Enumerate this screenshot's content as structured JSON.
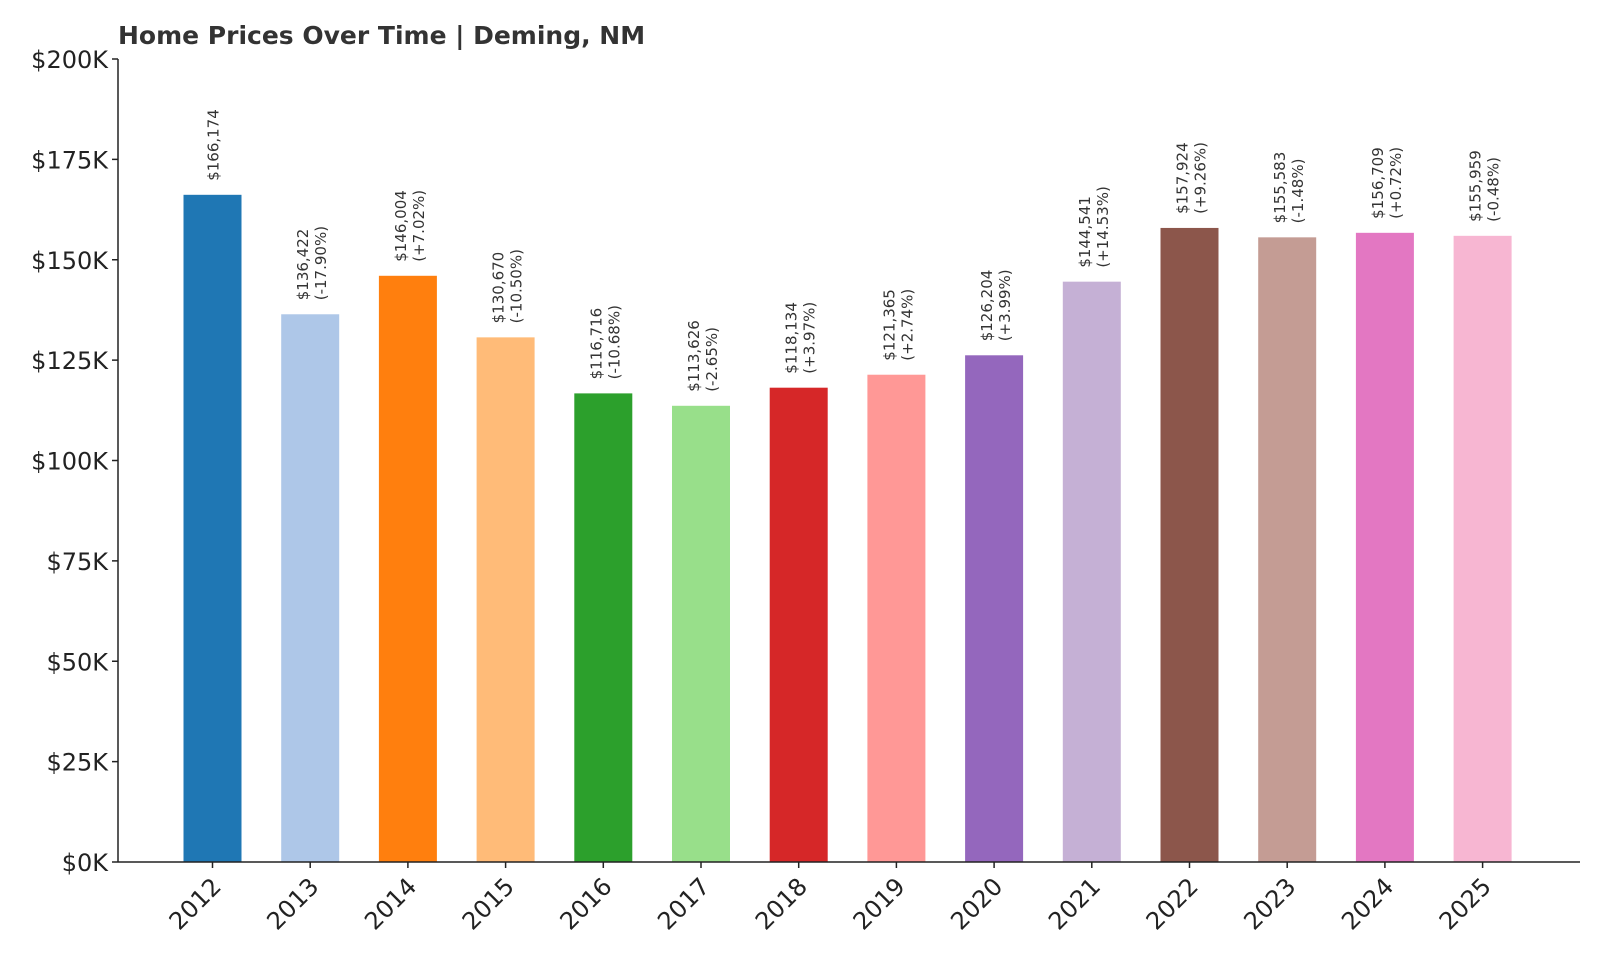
{
  "chart_data": {
    "type": "bar",
    "title": "Home Prices Over Time | Deming, NM",
    "xlabel": "",
    "ylabel": "",
    "ylim": [
      0,
      200000
    ],
    "yticks": [
      0,
      25000,
      50000,
      75000,
      100000,
      125000,
      150000,
      175000,
      200000
    ],
    "ytick_labels": [
      "$0K",
      "$25K",
      "$50K",
      "$75K",
      "$100K",
      "$125K",
      "$150K",
      "$175K",
      "$200K"
    ],
    "categories": [
      "2012",
      "2013",
      "2014",
      "2015",
      "2016",
      "2017",
      "2018",
      "2019",
      "2020",
      "2021",
      "2022",
      "2023",
      "2024",
      "2025"
    ],
    "values": [
      166174,
      136422,
      146004,
      130670,
      116716,
      113626,
      118134,
      121365,
      126204,
      144541,
      157924,
      155583,
      156709,
      155959
    ],
    "value_labels": [
      "$166,174",
      "$136,422",
      "$146,004",
      "$130,670",
      "$116,716",
      "$113,626",
      "$118,134",
      "$121,365",
      "$126,204",
      "$144,541",
      "$157,924",
      "$155,583",
      "$156,709",
      "$155,959"
    ],
    "change_labels": [
      "",
      "(-17.90%)",
      "(+7.02%)",
      "(-10.50%)",
      "(-10.68%)",
      "(-2.65%)",
      "(+3.97%)",
      "(+2.74%)",
      "(+3.99%)",
      "(+14.53%)",
      "(+9.26%)",
      "(-1.48%)",
      "(+0.72%)",
      "(-0.48%)"
    ],
    "colors": [
      "#1f77b4",
      "#aec7e8",
      "#ff7f0e",
      "#ffbb78",
      "#2ca02c",
      "#98df8a",
      "#d62728",
      "#ff9896",
      "#9467bd",
      "#c5b0d5",
      "#8c564b",
      "#c49c94",
      "#e377c2",
      "#f7b6d2"
    ],
    "grid": false,
    "legend": "none"
  }
}
